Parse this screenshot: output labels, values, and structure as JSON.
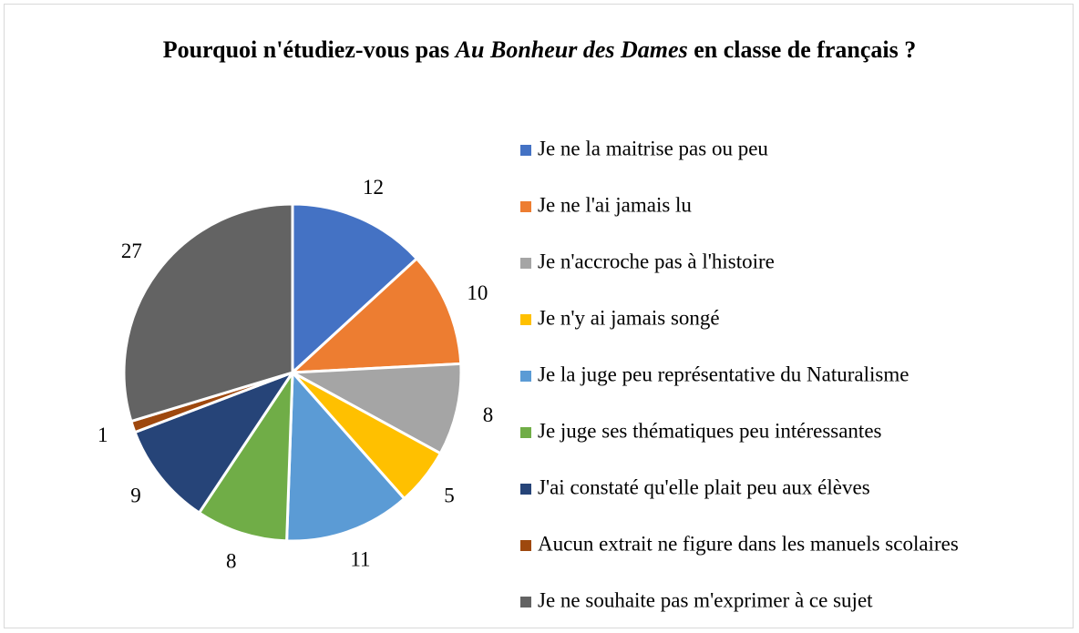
{
  "chart_data": {
    "type": "pie",
    "title": [
      "Pourquoi n'étudiez-vous pas ",
      "Au Bonheur des Dames",
      " en classe de français ?"
    ],
    "categories": [
      "Je ne la maitrise pas ou peu",
      "Je ne l'ai jamais lu",
      "Je n'accroche pas à l'histoire",
      "Je n'y ai jamais songé",
      "Je la juge peu représentative du Naturalisme",
      "Je juge ses thématiques peu intéressantes",
      "J'ai constaté qu'elle plait peu aux élèves",
      "Aucun extrait ne figure dans les manuels scolaires",
      "Je ne souhaite pas m'exprimer à ce sujet"
    ],
    "values": [
      12,
      10,
      8,
      5,
      11,
      8,
      9,
      1,
      27
    ],
    "colors": [
      "#4472c4",
      "#ed7d31",
      "#a5a5a5",
      "#ffc000",
      "#5b9bd5",
      "#70ad47",
      "#264478",
      "#9e480e",
      "#636363"
    ],
    "legend": "right"
  }
}
